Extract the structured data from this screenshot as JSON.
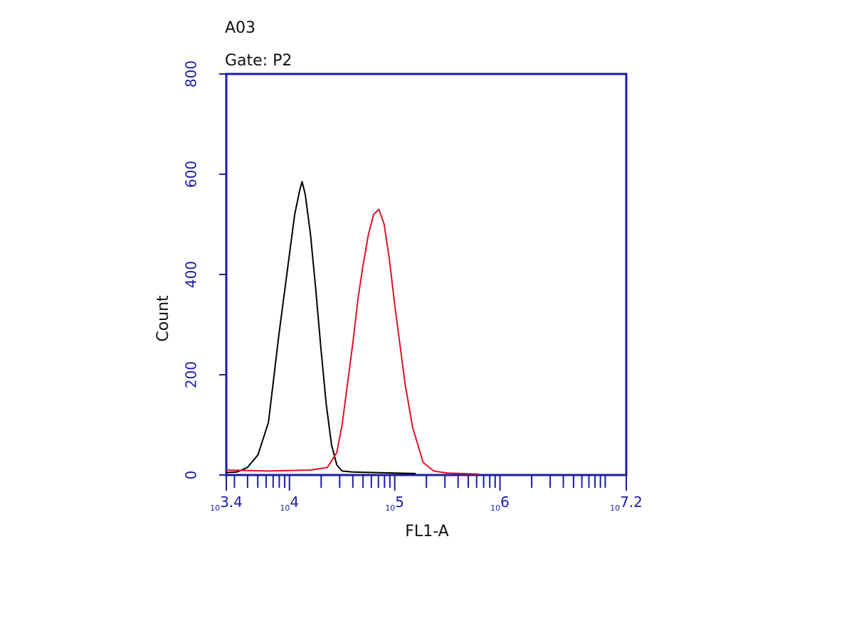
{
  "chart_data": {
    "type": "histogram-line",
    "title": "A03",
    "subtitle": "Gate: P2",
    "xlabel": "FL1-A",
    "ylabel": "Count",
    "xscale": "log",
    "xlim": [
      2511.886,
      15848932
    ],
    "ylim": [
      0,
      800
    ],
    "xticks": [
      {
        "value": 2511.886,
        "label": "10",
        "sup": "3.4"
      },
      {
        "value": 10000,
        "label": "10",
        "sup": "4"
      },
      {
        "value": 100000,
        "label": "10",
        "sup": "5"
      },
      {
        "value": 1000000,
        "label": "10",
        "sup": "6"
      },
      {
        "value": 15848932,
        "label": "10",
        "sup": "7.2"
      }
    ],
    "xminorticks": [
      3000,
      4000,
      5000,
      6000,
      7000,
      8000,
      9000,
      20000,
      30000,
      40000,
      50000,
      60000,
      70000,
      80000,
      90000,
      200000,
      300000,
      400000,
      500000,
      600000,
      700000,
      800000,
      900000,
      2000000,
      3000000,
      4000000,
      5000000,
      6000000,
      7000000,
      8000000,
      9000000,
      10000000
    ],
    "yticks": [
      0,
      200,
      400,
      600,
      800
    ],
    "axis_color": "#1c1ca8",
    "series": [
      {
        "color": "#000000",
        "x": [
          2512,
          3162,
          3981,
          5012,
          6310,
          7943,
          10000,
          11220,
          12589,
          13183,
          14125,
          15849,
          17783,
          19953,
          22387,
          25119,
          28184,
          31623,
          39811,
          63096,
          100000,
          158489
        ],
        "values": [
          5,
          6,
          15,
          40,
          105,
          280,
          440,
          520,
          570,
          585,
          560,
          480,
          370,
          250,
          140,
          60,
          20,
          8,
          6,
          5,
          4,
          3
        ]
      },
      {
        "color": "#e0102a",
        "x": [
          2512,
          6310,
          15849,
          22909,
          28184,
          31623,
          39811,
          44668,
          50119,
          56234,
          63096,
          70795,
          79433,
          89125,
          100000,
          125893,
          147911,
          186209,
          234423,
          316228,
          630957
        ],
        "values": [
          10,
          8,
          10,
          15,
          45,
          100,
          260,
          350,
          420,
          480,
          520,
          530,
          500,
          430,
          340,
          180,
          95,
          25,
          8,
          4,
          2
        ]
      }
    ]
  }
}
